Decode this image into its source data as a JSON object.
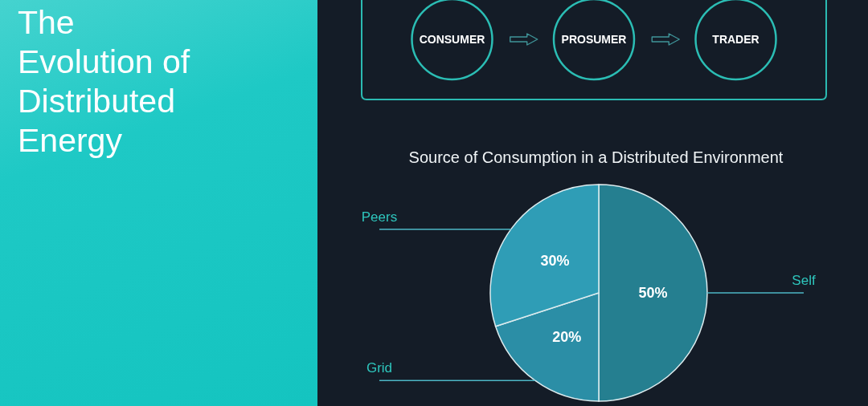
{
  "chart_data": [
    {
      "type": "other",
      "title": "The Evolution of Distributed Energy",
      "categories": [
        "CONSUMER",
        "PROSUMER",
        "TRADER"
      ]
    },
    {
      "type": "pie",
      "title": "Source of Consumption in a Distributed Environment",
      "categories": [
        "Self",
        "Grid",
        "Peers"
      ],
      "values": [
        50,
        20,
        30
      ],
      "colors": [
        "#257f90",
        "#2b8ea6",
        "#2f9db6"
      ],
      "value_labels": [
        "50%",
        "20%",
        "30%"
      ]
    }
  ]
}
